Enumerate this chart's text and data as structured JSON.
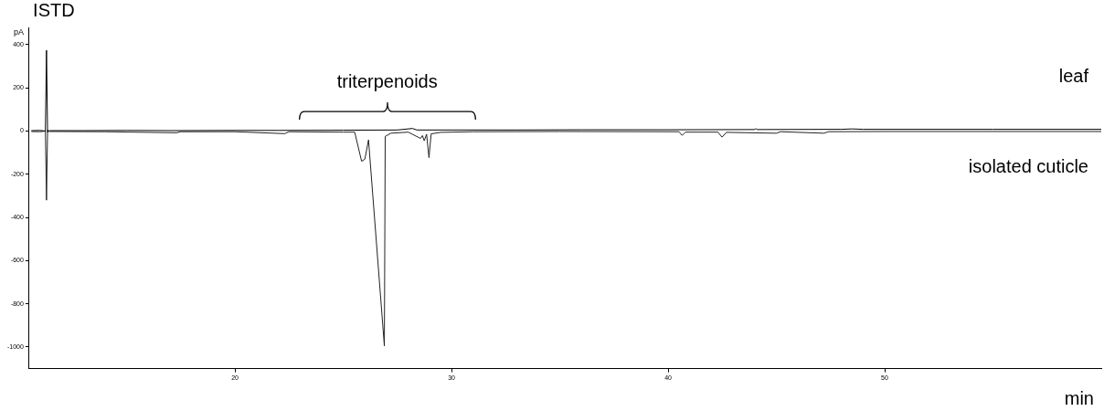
{
  "chart_data": {
    "type": "line",
    "xlabel": "min",
    "ylabel": "pA",
    "xlim": [
      10.5,
      60
    ],
    "xticks": [
      20,
      30,
      40,
      50
    ],
    "ylim": [
      -1100,
      480
    ],
    "yticks": [
      -1000,
      -800,
      -600,
      -400,
      -200,
      0,
      200,
      400
    ],
    "grid": false,
    "legend": false,
    "marker": "none",
    "line_style": "solid",
    "annotations": [
      {
        "text": "ISTD",
        "x": 11.3,
        "y": 374
      },
      "triterpenoids"
    ],
    "series": [
      {
        "name": "leaf",
        "color": "#000000",
        "x": [
          10.6,
          11.0,
          11.25,
          11.3,
          11.35,
          11.45,
          13,
          15,
          17,
          20,
          22,
          25,
          27.5,
          28.2,
          28.4,
          30,
          33,
          36,
          40,
          44,
          44.05,
          44.1,
          48,
          48.5,
          49,
          55,
          60
        ],
        "values": [
          2,
          3,
          0,
          374,
          -5,
          2,
          2,
          3,
          2,
          3,
          3,
          4,
          5,
          12,
          5,
          5,
          5,
          6,
          6,
          7,
          12,
          7,
          8,
          10,
          8,
          8,
          8
        ]
      },
      {
        "name": "isolated cuticle",
        "color": "#222222",
        "x": [
          10.6,
          11.0,
          11.25,
          11.3,
          11.35,
          11.45,
          14,
          17.3,
          17.5,
          20,
          22.3,
          22.5,
          25,
          25.53,
          25.85,
          26.0,
          26.17,
          26.9,
          26.94,
          27.2,
          28,
          28.57,
          28.66,
          28.74,
          28.85,
          28.96,
          29.06,
          29.5,
          31,
          35,
          40.5,
          40.65,
          40.8,
          42.3,
          42.49,
          42.7,
          45,
          45.2,
          47.2,
          47.4,
          50,
          60
        ],
        "values": [
          -2,
          -3,
          0,
          -320,
          5,
          -2,
          -3,
          -8,
          -3,
          -3,
          -12,
          -3,
          -5,
          -5,
          -140,
          -130,
          -41,
          -995,
          -25,
          -10,
          -5,
          -34,
          -21,
          -45,
          -15,
          -123,
          -13,
          -6,
          -3,
          -2,
          -3,
          -20,
          -5,
          -5,
          -28,
          -6,
          -10,
          -3,
          -10,
          -3,
          -2,
          -2
        ]
      }
    ]
  }
}
